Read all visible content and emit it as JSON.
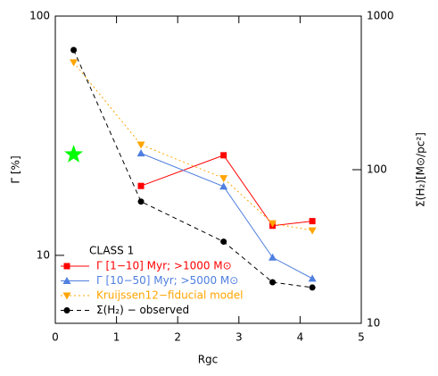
{
  "chart_data": {
    "type": "line",
    "xlabel": "Rgc",
    "ylabel": "Γ [%]",
    "y2label": "Σ(H₂)[M⊙/pc²]",
    "xlim": [
      0,
      5
    ],
    "xticks": [
      0,
      1,
      2,
      3,
      4,
      5
    ],
    "ylim": [
      5.2,
      100
    ],
    "yticks": [
      10,
      100
    ],
    "ylog": true,
    "y2lim": [
      10,
      1000
    ],
    "y2ticks": [
      10,
      100,
      1000
    ],
    "y2log": true,
    "legend_title": "CLASS 1",
    "legend_position": "lower left",
    "series": [
      {
        "name": "Γ [1−10] Myr; >1000 M⊙",
        "color": "#ff0000",
        "marker": "square",
        "dash": "none",
        "x": [
          1.4,
          2.75,
          3.55,
          4.2
        ],
        "values": [
          19.5,
          26.2,
          13.3,
          13.9
        ]
      },
      {
        "name": "Γ [10−50] Myr; >5000 M⊙",
        "color": "#4f7fe0",
        "marker": "triangle",
        "dash": "none",
        "x": [
          1.4,
          2.75,
          3.55,
          4.2
        ],
        "values": [
          26.7,
          19.4,
          9.8,
          8.0
        ]
      },
      {
        "name": "Kruijssen12−fiducial model",
        "color": "#ffa500",
        "marker": "triangle-down",
        "dash": "2,3",
        "x": [
          0.3,
          1.4,
          2.75,
          3.55,
          4.2
        ],
        "values": [
          64,
          29,
          21,
          13.6,
          12.7
        ]
      },
      {
        "name": "Σ(H₂) − observed",
        "color": "#000000",
        "marker": "circle",
        "dash": "5,4",
        "axis": "y2",
        "x": [
          0.3,
          1.4,
          2.75,
          3.55,
          4.2
        ],
        "values": [
          601,
          62,
          34,
          18.5,
          17.1
        ]
      }
    ],
    "markers": [
      {
        "shape": "star",
        "color": "#00ff00",
        "x": 0.3,
        "y": 26.4
      }
    ]
  }
}
